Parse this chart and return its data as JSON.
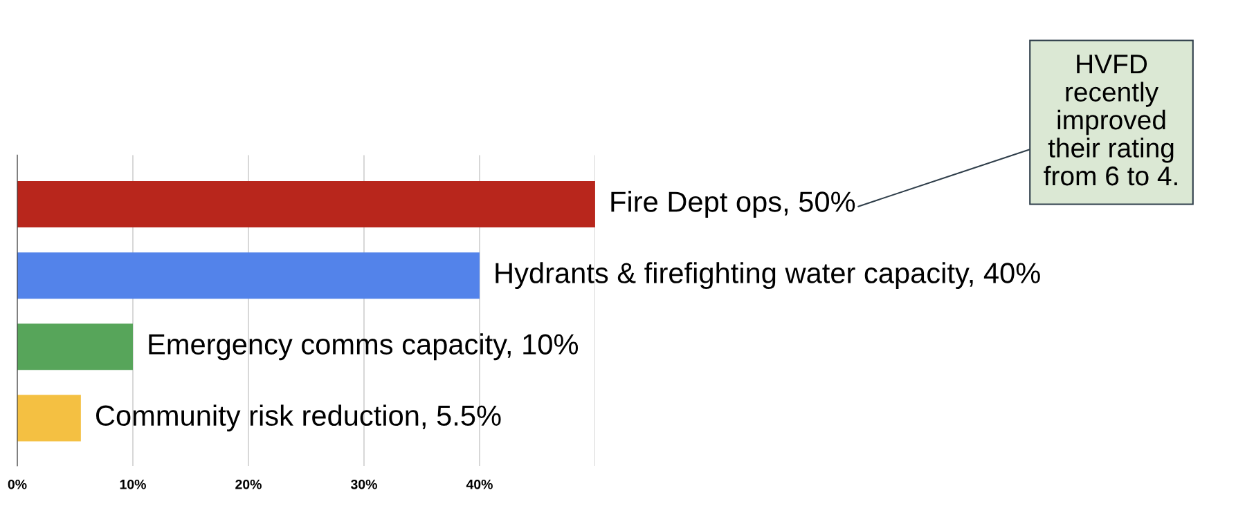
{
  "chart_data": {
    "type": "bar",
    "orientation": "horizontal",
    "categories": [
      null,
      null,
      null,
      null
    ],
    "value_labels": [
      "Fire Dept ops, 50%",
      "Hydrants & firefighting water capacity, 40%",
      "Emergency comms capacity, 10%",
      "Community risk reduction, 5.5%"
    ],
    "values": [
      50,
      40,
      10,
      5.5
    ],
    "colors": [
      "#b8261c",
      "#5383ea",
      "#57a55a",
      "#f4c042"
    ],
    "xlim": [
      0,
      50
    ],
    "xticks": [
      {
        "value": 0,
        "label": "0%"
      },
      {
        "value": 10,
        "label": "10%"
      },
      {
        "value": 20,
        "label": "20%"
      },
      {
        "value": 30,
        "label": "30%"
      },
      {
        "value": 40,
        "label": "40%"
      },
      {
        "value": 50,
        "label": null
      }
    ],
    "grid": "x",
    "annotations": [
      "HVFD\nrecently\nimproved\ntheir rating\nfrom 6 to 4."
    ]
  }
}
